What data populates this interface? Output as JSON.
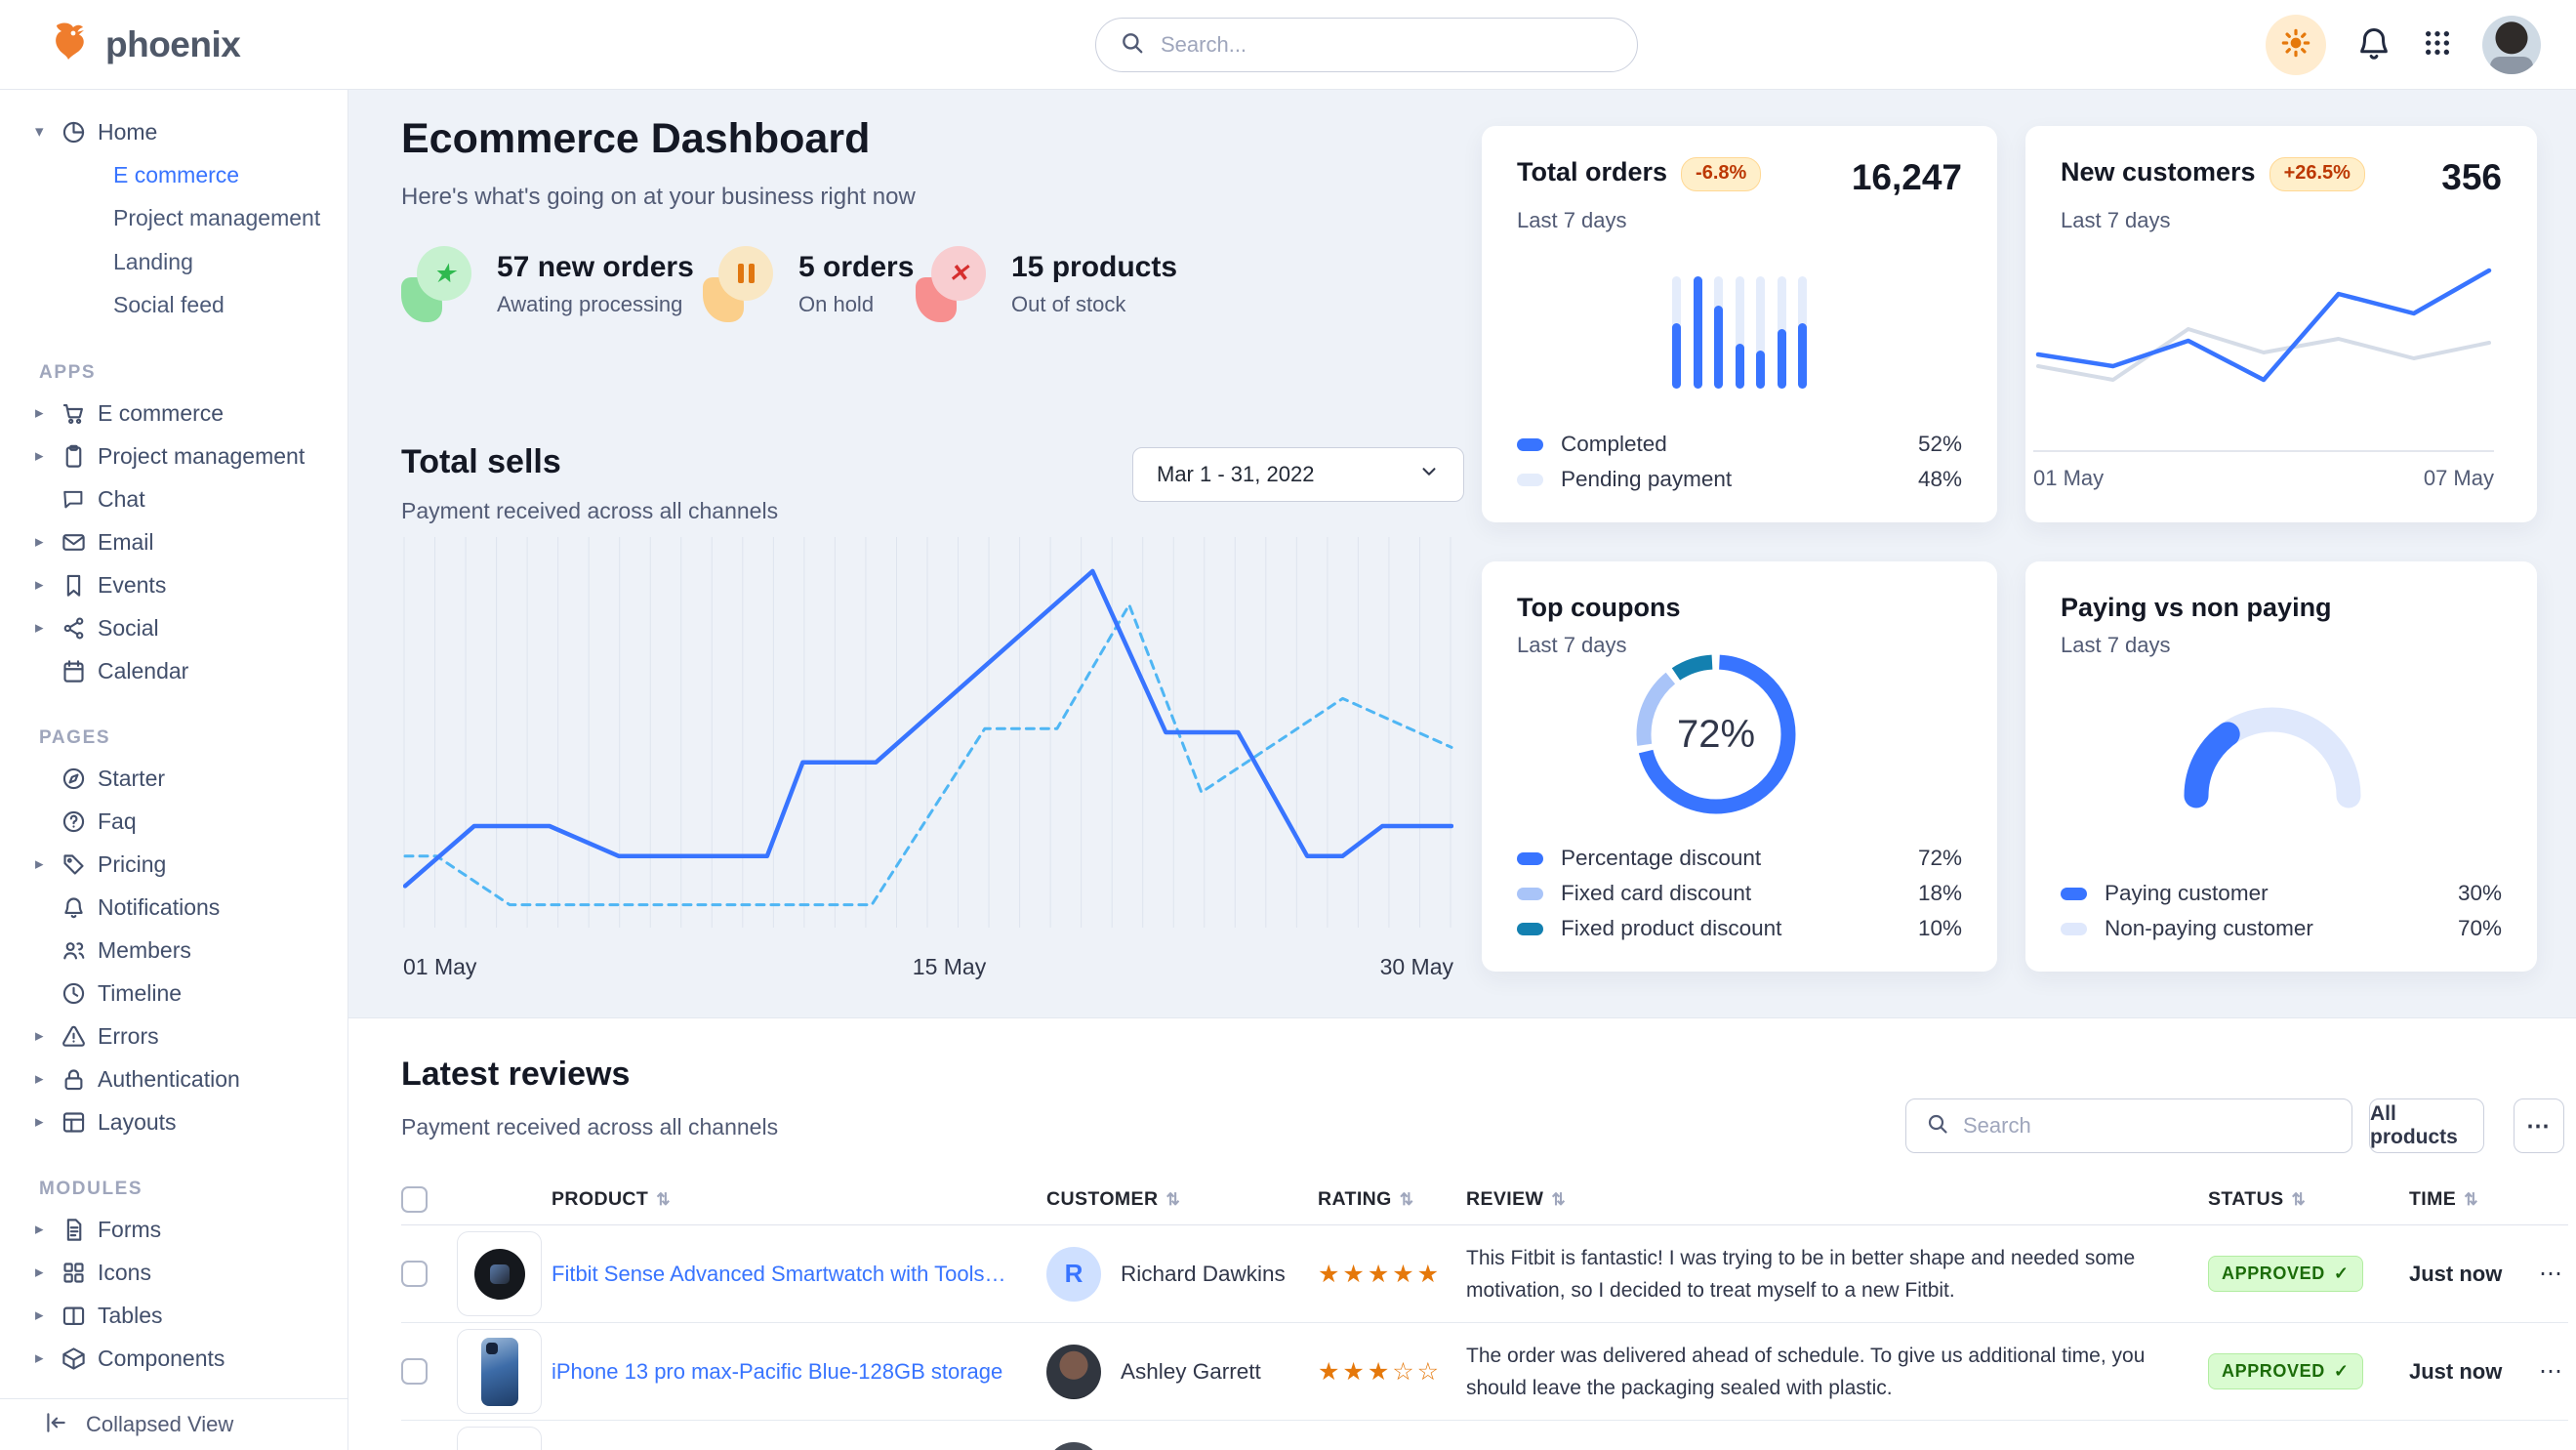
{
  "colors": {
    "primary": "#3874ff",
    "primary_light": "#e4ecfb",
    "dashed_line": "#4fb6f4",
    "gray_line": "#d5dce7",
    "donut_light": "#a9c4f8",
    "donut_dark": "#1380b0",
    "gauge_light": "#dfe8fc",
    "star": "#e5780b",
    "success_text": "#1c6c09",
    "warning_text": "#bc3803"
  },
  "navbar": {
    "brand": "phoenix",
    "search_placeholder": "Search..."
  },
  "sidebar": {
    "home": {
      "label": "Home",
      "icon": "pie-chart",
      "children": [
        {
          "label": "E commerce",
          "active": true
        },
        {
          "label": "Project management",
          "active": false
        },
        {
          "label": "Landing",
          "active": false
        },
        {
          "label": "Social feed",
          "active": false
        }
      ]
    },
    "sections": [
      {
        "title": "APPS",
        "items": [
          {
            "label": "E commerce",
            "icon": "cart",
            "caret": true
          },
          {
            "label": "Project management",
            "icon": "clipboard",
            "caret": true
          },
          {
            "label": "Chat",
            "icon": "chat",
            "caret": false
          },
          {
            "label": "Email",
            "icon": "envelope",
            "caret": true
          },
          {
            "label": "Events",
            "icon": "bookmark",
            "caret": true
          },
          {
            "label": "Social",
            "icon": "share",
            "caret": true
          },
          {
            "label": "Calendar",
            "icon": "calendar",
            "caret": false
          }
        ]
      },
      {
        "title": "PAGES",
        "items": [
          {
            "label": "Starter",
            "icon": "compass",
            "caret": false
          },
          {
            "label": "Faq",
            "icon": "question",
            "caret": false
          },
          {
            "label": "Pricing",
            "icon": "tag",
            "caret": true
          },
          {
            "label": "Notifications",
            "icon": "bell",
            "caret": false
          },
          {
            "label": "Members",
            "icon": "users",
            "caret": false
          },
          {
            "label": "Timeline",
            "icon": "clock",
            "caret": false
          },
          {
            "label": "Errors",
            "icon": "warning",
            "caret": true
          },
          {
            "label": "Authentication",
            "icon": "lock",
            "caret": true
          },
          {
            "label": "Layouts",
            "icon": "layout",
            "caret": true
          }
        ]
      },
      {
        "title": "MODULES",
        "items": [
          {
            "label": "Forms",
            "icon": "file",
            "caret": true
          },
          {
            "label": "Icons",
            "icon": "grid4",
            "caret": true
          },
          {
            "label": "Tables",
            "icon": "table",
            "caret": true
          },
          {
            "label": "Components",
            "icon": "cube",
            "caret": true
          }
        ]
      }
    ],
    "footer": {
      "label": "Collapsed View"
    }
  },
  "header": {
    "title": "Ecommerce Dashboard",
    "subtitle": "Here's what's going on at your business right now",
    "stats": [
      {
        "value": "57 new orders",
        "caption": "Awating processing",
        "tone": "green",
        "glyph": "star"
      },
      {
        "value": "5 orders",
        "caption": "On hold",
        "tone": "orange",
        "glyph": "pause"
      },
      {
        "value": "15 products",
        "caption": "Out of stock",
        "tone": "red",
        "glyph": "x"
      }
    ]
  },
  "total_sells": {
    "title": "Total sells",
    "subtitle": "Payment received across all channels",
    "date_range": "Mar 1 - 31, 2022"
  },
  "cards": {
    "total_orders": {
      "title": "Total orders",
      "badge": "-6.8%",
      "subtitle": "Last 7 days",
      "value": "16,247"
    },
    "new_customers": {
      "title": "New customers",
      "badge": "+26.5%",
      "subtitle": "Last 7 days",
      "value": "356"
    },
    "top_coupons": {
      "title": "Top coupons",
      "subtitle": "Last 7 days"
    },
    "paying": {
      "title": "Paying vs non paying",
      "subtitle": "Last 7 days"
    }
  },
  "chart_data": [
    {
      "id": "total_sells",
      "type": "line",
      "title": "Total sells",
      "x_labels": [
        "01 May",
        "15 May",
        "30 May"
      ],
      "gridlines": 35,
      "ylim": [
        0,
        100
      ],
      "series": [
        {
          "name": "current",
          "style": "solid",
          "color": "#3874ff",
          "points": [
            [
              0,
              9
            ],
            [
              6.6,
              25
            ],
            [
              13.8,
              25
            ],
            [
              20.4,
              17
            ],
            [
              34.6,
              17
            ],
            [
              38,
              42
            ],
            [
              45,
              42
            ],
            [
              65.7,
              93
            ],
            [
              72.7,
              50
            ],
            [
              79.6,
              50
            ],
            [
              86.2,
              17
            ],
            [
              89.6,
              17
            ],
            [
              93.4,
              25
            ],
            [
              100,
              25
            ]
          ]
        },
        {
          "name": "previous",
          "style": "dashed",
          "color": "#4fb6f4",
          "points": [
            [
              0,
              17
            ],
            [
              3,
              17
            ],
            [
              10,
              4
            ],
            [
              44.6,
              4
            ],
            [
              55.4,
              51
            ],
            [
              62.3,
              51
            ],
            [
              69.2,
              84
            ],
            [
              76.1,
              34
            ],
            [
              89.6,
              59
            ],
            [
              100,
              46
            ]
          ]
        }
      ]
    },
    {
      "id": "total_orders",
      "type": "bar",
      "values": [
        58,
        100,
        74,
        40,
        34,
        53,
        58
      ],
      "ylim": [
        0,
        100
      ],
      "legend": [
        {
          "label": "Completed",
          "pct": "52%",
          "color": "#3874ff"
        },
        {
          "label": "Pending payment",
          "pct": "48%",
          "color": "#e4ecfb"
        }
      ]
    },
    {
      "id": "new_customers",
      "type": "line",
      "x_labels": [
        "01 May",
        "07 May"
      ],
      "ylim": [
        0,
        100
      ],
      "series": [
        {
          "name": "previous",
          "style": "solid",
          "color": "#d5dce7",
          "points": [
            [
              0,
              36
            ],
            [
              16.6,
              29
            ],
            [
              33.3,
              55
            ],
            [
              50,
              43
            ],
            [
              66.6,
              50
            ],
            [
              83.3,
              40
            ],
            [
              100,
              48
            ]
          ]
        },
        {
          "name": "current",
          "style": "solid",
          "color": "#3874ff",
          "points": [
            [
              0,
              42
            ],
            [
              16.6,
              36
            ],
            [
              33.3,
              49
            ],
            [
              50,
              29
            ],
            [
              66.6,
              73
            ],
            [
              83.3,
              63
            ],
            [
              100,
              85
            ]
          ]
        }
      ]
    },
    {
      "id": "top_coupons",
      "type": "donut",
      "center_label": "72%",
      "segments": [
        {
          "label": "Percentage discount",
          "value": 72,
          "pct": "72%",
          "color": "#3874ff"
        },
        {
          "label": "Fixed card discount",
          "value": 18,
          "pct": "18%",
          "color": "#a9c4f8"
        },
        {
          "label": "Fixed product discount",
          "value": 10,
          "pct": "10%",
          "color": "#1380b0"
        }
      ]
    },
    {
      "id": "paying_gauge",
      "type": "gauge",
      "segments": [
        {
          "label": "Paying customer",
          "value": 30,
          "pct": "30%",
          "color": "#3874ff"
        },
        {
          "label": "Non-paying customer",
          "value": 70,
          "pct": "70%",
          "color": "#dfe8fc"
        }
      ]
    }
  ],
  "reviews": {
    "title": "Latest reviews",
    "subtitle": "Payment received across all channels",
    "search_placeholder": "Search",
    "all_products_label": "All products",
    "kebab_label": "...",
    "columns": [
      "PRODUCT",
      "CUSTOMER",
      "RATING",
      "REVIEW",
      "STATUS",
      "TIME"
    ],
    "rows": [
      {
        "product": "Fitbit Sense Advanced Smartwatch with Tools fo...",
        "thumb": "watch",
        "customer": "Richard Dawkins",
        "avatar": "initial",
        "avatar_initial": "R",
        "rating": 5,
        "review": "This Fitbit is fantastic! I was trying to be in better shape and needed some motivation, so I decided to treat myself to a new Fitbit.",
        "status": "APPROVED",
        "time": "Just now"
      },
      {
        "product": "iPhone 13 pro max-Pacific Blue-128GB storage",
        "thumb": "phone",
        "customer": "Ashley Garrett",
        "avatar": "photo1",
        "avatar_initial": "",
        "rating": 3,
        "review": "The order was delivered ahead of schedule. To give us additional time, you should leave the packaging sealed with plastic.",
        "status": "APPROVED",
        "time": "Just now"
      },
      {
        "product": "",
        "thumb": "blank",
        "customer": "",
        "avatar": "photo2",
        "avatar_initial": "",
        "rating": 0,
        "review": "",
        "status": "",
        "time": ""
      }
    ]
  }
}
